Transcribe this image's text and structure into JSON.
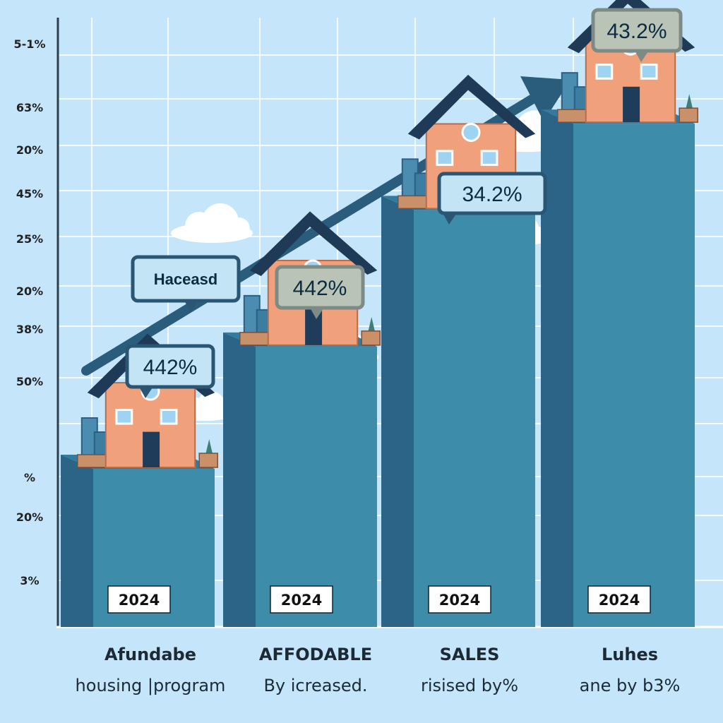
{
  "chart_data": {
    "type": "bar",
    "title": "",
    "xlabel": "",
    "ylabel": "",
    "y_tick_labels": [
      "5-1%",
      "63%",
      "20%",
      "45%",
      "25%",
      "20%",
      "38%",
      "50%",
      "%",
      "20%",
      "3%"
    ],
    "ylim": [
      0,
      100
    ],
    "grid": true,
    "categories": [
      "2024",
      "2024",
      "2024",
      "2024"
    ],
    "values": [
      22,
      39,
      58,
      70
    ],
    "callouts": [
      {
        "text": "442%",
        "color": "#2a5673",
        "fill": "#c2e4f4"
      },
      {
        "text": "442%",
        "color": "#7e8a85",
        "fill": "#b9c4b6"
      },
      {
        "text": "34.2%",
        "color": "#2a5673",
        "fill": "#c2e4f4"
      },
      {
        "text": "43.2%",
        "color": "#7e8a85",
        "fill": "#b9c4b6"
      }
    ],
    "trend_callout": "Haceasd",
    "category_labels": [
      [
        "Afundabe",
        "housing |program"
      ],
      [
        "AFFODABLE",
        "By  icreased."
      ],
      [
        "SALES",
        "risised by%"
      ],
      [
        "Luhes",
        "ane by  b3%"
      ]
    ],
    "colors": {
      "bar_front": "#3d8caa",
      "bar_side": "#2c6487",
      "roof": "#1e3a56",
      "house_wall": "#f0a07a",
      "arrow": "#2a5d7c",
      "background": "#c5e6fa"
    }
  }
}
